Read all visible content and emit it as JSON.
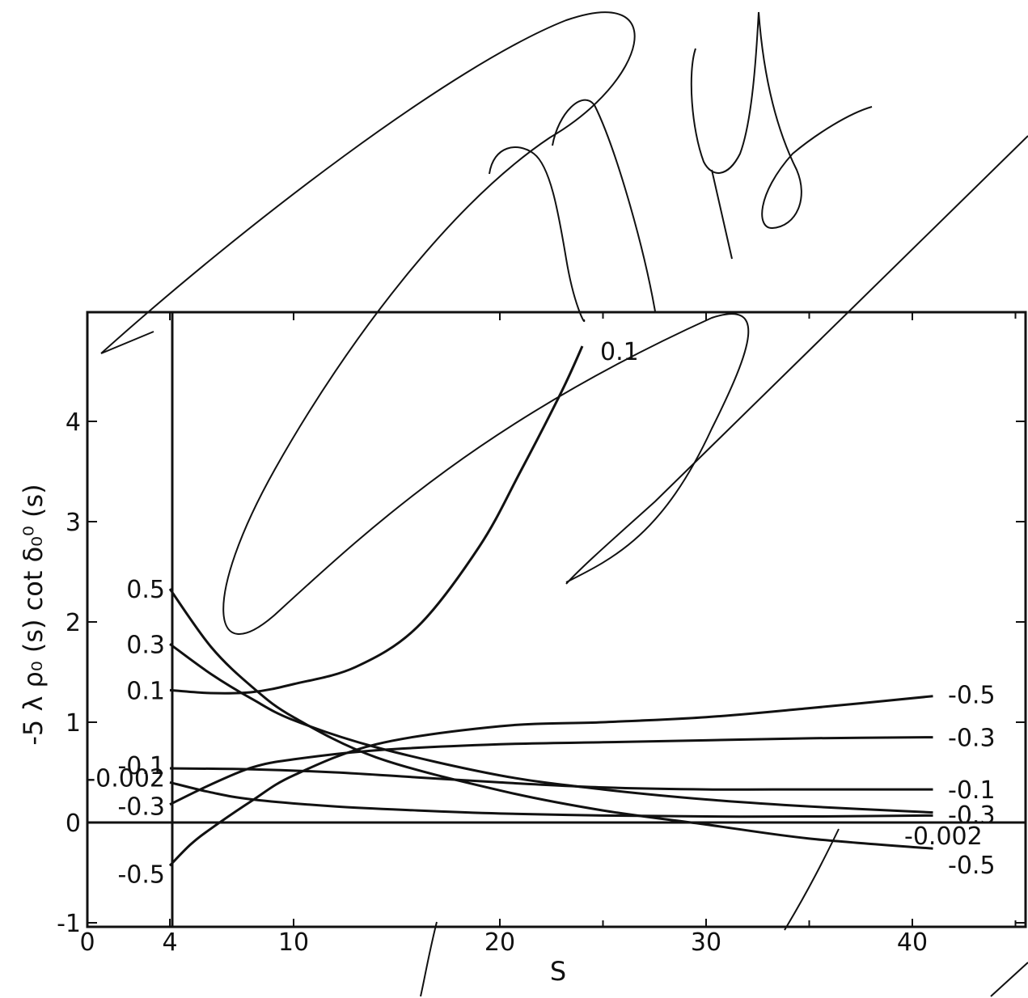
{
  "chart_data": {
    "type": "line",
    "title": "",
    "xlabel": "S",
    "ylabel": "-5 λ ρ₀ (s) cot δ₀⁰ (s)",
    "xlim": [
      0,
      45
    ],
    "ylim": [
      -1,
      4.9
    ],
    "x_ticks": [
      "0",
      "4",
      "10",
      "20",
      "30",
      "40"
    ],
    "y_ticks": [
      "-1",
      "0",
      "1",
      "2",
      "3",
      "4"
    ],
    "series": [
      {
        "name": "0.5",
        "label_side": "left",
        "x": [
          4,
          6,
          8,
          10,
          14,
          20,
          25,
          30,
          35,
          41
        ],
        "y": [
          2.33,
          1.75,
          1.35,
          1.05,
          0.65,
          0.32,
          0.12,
          -0.02,
          -0.16,
          -0.26
        ]
      },
      {
        "name": "0.3",
        "label_side": "left",
        "x": [
          4,
          6,
          8,
          10,
          14,
          20,
          25,
          30,
          35,
          41
        ],
        "y": [
          1.78,
          1.48,
          1.23,
          1.02,
          0.75,
          0.47,
          0.33,
          0.23,
          0.16,
          0.1
        ]
      },
      {
        "name": "0.1",
        "label_side": "left",
        "x": [
          4,
          6,
          8,
          10,
          13,
          16,
          19,
          21,
          23,
          24
        ],
        "y": [
          1.32,
          1.29,
          1.3,
          1.38,
          1.55,
          1.95,
          2.75,
          3.5,
          4.3,
          4.75
        ]
      },
      {
        "name": "-0.1",
        "label_side": "left",
        "x": [
          4,
          8,
          12,
          16,
          20,
          25,
          30,
          35,
          41
        ],
        "y": [
          0.54,
          0.53,
          0.5,
          0.45,
          0.4,
          0.35,
          0.33,
          0.33,
          0.33
        ]
      },
      {
        "name": "-0.002",
        "label_side": "left",
        "x": [
          4,
          6,
          8,
          12,
          16,
          20,
          25,
          30,
          35,
          41
        ],
        "y": [
          0.4,
          0.3,
          0.23,
          0.16,
          0.12,
          0.09,
          0.07,
          0.06,
          0.06,
          0.07
        ]
      },
      {
        "name": "-0.3",
        "label_side": "left",
        "x": [
          4,
          6,
          8,
          10,
          14,
          20,
          25,
          30,
          35,
          41
        ],
        "y": [
          0.18,
          0.38,
          0.55,
          0.63,
          0.72,
          0.78,
          0.8,
          0.82,
          0.84,
          0.85
        ]
      },
      {
        "name": "-0.5",
        "label_side": "left",
        "x": [
          4,
          5,
          6,
          8,
          10,
          14,
          20,
          25,
          30,
          35,
          41
        ],
        "y": [
          -0.43,
          -0.22,
          -0.06,
          0.22,
          0.47,
          0.78,
          0.96,
          1.0,
          1.05,
          1.14,
          1.26
        ]
      }
    ],
    "right_labels": [
      "-0.5",
      "-0.3",
      "-0.1",
      "-0.3",
      "-0.002",
      "-0.5"
    ],
    "top_label": "0.1",
    "annotations_note": ""
  }
}
